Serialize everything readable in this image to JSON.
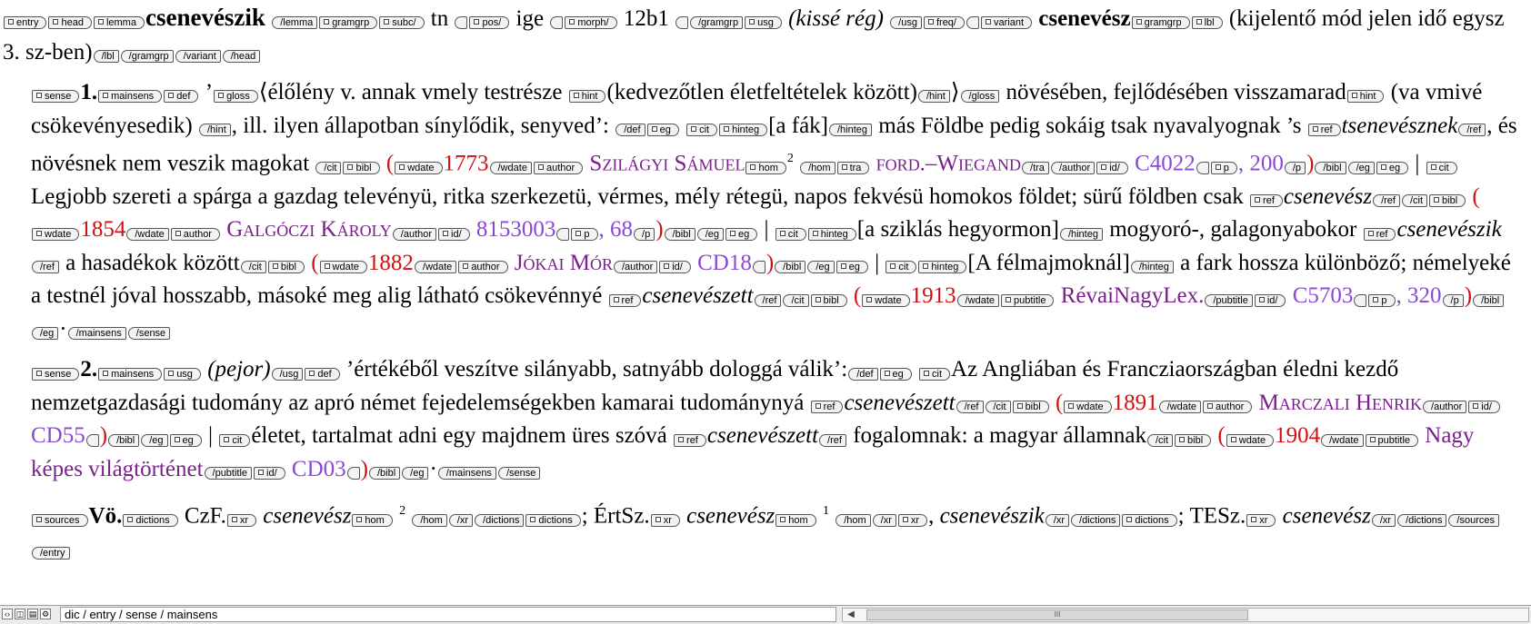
{
  "colors": {
    "date": "#d01010",
    "author": "#7a1f8c",
    "id": "#8a48d8"
  },
  "tags": {
    "entry": "entry",
    "head": "head",
    "lemma": "lemma",
    "lemma_c": "/lemma",
    "gramgrp": "gramgrp",
    "gramgrp_c": "/gramgrp",
    "subc_c": "subc/",
    "pos_c": "pos/",
    "morph_c": "morph/",
    "usg": "usg",
    "usg_c": "/usg",
    "freq_c": "freq/",
    "variant": "variant",
    "variant_c": "/variant",
    "lbl": "lbl",
    "lbl_c": "/lbl",
    "head_c": "/head",
    "sense": "sense",
    "sense_c": "/sense",
    "mainsens": "mainsens",
    "mainsens_c": "/mainsens",
    "def": "def",
    "def_c": "/def",
    "gloss": "gloss",
    "gloss_c": "/gloss",
    "hint": "hint",
    "hint_c": "/hint",
    "eg": "eg",
    "eg_c": "/eg",
    "cit": "cit",
    "cit_c": "/cit",
    "hinteg": "hinteg",
    "hinteg_c": "/hinteg",
    "ref": "ref",
    "ref_c": "/ref",
    "bibl": "bibl",
    "bibl_c": "/bibl",
    "wdate": "wdate",
    "wdate_c": "/wdate",
    "author": "author",
    "author_c": "/author",
    "hom": "hom",
    "hom_c": "/hom",
    "tra": "tra",
    "tra_c": "/tra",
    "id_c": "id/",
    "p": "p",
    "p_c": "/p",
    "pubtitle": "pubtitle",
    "pubtitle_c": "/pubtitle",
    "sources": "sources",
    "sources_c": "/sources",
    "dictions": "dictions",
    "dictions_c": "/dictions",
    "xr": "xr",
    "xr_c": "/xr",
    "entry_c": "/entry"
  },
  "entry": {
    "headword": "csenevészik",
    "pos": "tn",
    "pos_label": "ige",
    "morph": "12b1",
    "usage": "(kissé rég)",
    "variant": "csenevész",
    "variant_label": "(kijelentő mód jelen idő egysz 3. sz-ben)"
  },
  "sense1": {
    "num": "1.",
    "q_open": "’",
    "gloss": "⟨élőlény v. annak vmely testrésze",
    "hint1": "(kedvezőtlen életfeltételek között)",
    "gloss_end": "⟩",
    "def1": "növésében, fejlődésében visszamarad",
    "hint2": "(va vmivé csökevényesedik)",
    "def2": ", ill. ilyen állapotban sínylődik, senyved’:",
    "eg1": {
      "hinteg": "[a fák]",
      "text1": "más Földbe pedig sokáig tsak nyavalyognak ’s",
      "ref": "tsenevésznek",
      "text2": ", és növésnek nem veszik magokat",
      "date": "1773",
      "author": "Szilágyi Sámuel",
      "hom": "2",
      "tra": "ford.–Wiegand",
      "id": "C4022",
      "p": "200"
    },
    "eg2": {
      "text": "Legjobb szereti a spárga a gazdag televényü, ritka szerkezetü, vérmes, mély rétegü, napos fekvésü homokos földet; sürű földben csak",
      "ref": "csenevész",
      "date": "1854",
      "author": "Galgóczi Károly",
      "id": "8153003",
      "p": "68"
    },
    "eg3": {
      "hinteg": "[a sziklás hegyormon]",
      "text1": "mogyoró-, galagonyabokor",
      "ref": "csenevészik",
      "text2": "a hasadékok között",
      "date": "1882",
      "author": "Jókai Mór",
      "id": "CD18"
    },
    "eg4": {
      "hinteg": "[A félmajmoknál]",
      "text": "a fark hossza különböző; némelyeké a testnél jóval hosszabb, másoké meg alig látható csökevénnyé",
      "ref": "csenevészett",
      "date": "1913",
      "pubtitle": "RévaiNagyLex.",
      "id": "C5703",
      "p": "320"
    }
  },
  "sense2": {
    "num": "2.",
    "usage": "(pejor)",
    "def": "’értékéből veszítve silányabb, satnyább dologgá válik’:",
    "eg1": {
      "text": "Az Angliában és Francziaországban éledni kezdő nemzetgazdasági tudomány az apró német fejedelemségekben kamarai tudománynyá",
      "ref": "csenevészett",
      "date": "1891",
      "author": "Marczali Henrik",
      "id": "CD55"
    },
    "eg2": {
      "text1": "életet, tartalmat adni egy majdnem üres szóvá",
      "ref": "csenevészett",
      "text2": "fogalomnak: a magyar államnak",
      "date": "1904",
      "pubtitle": "Nagy képes világtörténet",
      "id": "CD03"
    }
  },
  "sources": {
    "label": "Vö.",
    "czf": "CzF.",
    "czf_xr": "csenevész",
    "czf_hom": "2",
    "ertsz": "ÉrtSz.",
    "ertsz_xr": "csenevész",
    "ertsz_hom": "1",
    "ertsz_xr2": "csenevészik",
    "tesz": "TESz.",
    "tesz_xr": "csenevész"
  },
  "punct": {
    "bar": "|",
    "dot": "·",
    "comma": ",",
    "semi": ";",
    "paren_open": "(",
    "paren_close": ")"
  },
  "statusbar": {
    "path": "dic / entry / sense / mainsens",
    "scroll_grip": "III"
  }
}
